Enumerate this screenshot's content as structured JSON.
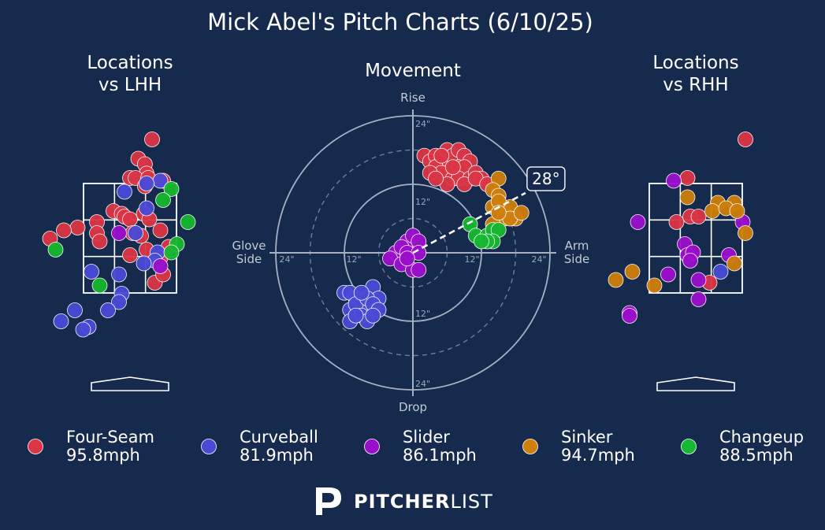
{
  "title": "Mick Abel's Pitch Charts (6/10/25)",
  "brand": {
    "bold": "PITCHER",
    "light": "LIST"
  },
  "colors": {
    "background": "#162a4d",
    "Four-Seam": "#dc3545",
    "Curveball": "#4a4ad8",
    "Slider": "#9b0ecc",
    "Sinker": "#cf7f0a",
    "Changeup": "#16b830"
  },
  "chart_data": [
    {
      "type": "scatter",
      "title": "Locations\nvs LHH",
      "series": [
        {
          "name": "Four-Seam",
          "points": [
            [
              0.4,
              4.3
            ],
            [
              0.15,
              3.95
            ],
            [
              0.27,
              3.85
            ],
            [
              0.0,
              3.6
            ],
            [
              0.3,
              3.68
            ],
            [
              0.1,
              3.6
            ],
            [
              0.33,
              3.6
            ],
            [
              0.6,
              3.55
            ],
            [
              0.27,
              3.45
            ],
            [
              -0.3,
              3.0
            ],
            [
              -0.15,
              2.95
            ],
            [
              -0.1,
              2.9
            ],
            [
              0.25,
              2.95
            ],
            [
              0.35,
              2.85
            ],
            [
              -0.6,
              2.8
            ],
            [
              -0.95,
              2.7
            ],
            [
              0.0,
              2.85
            ],
            [
              -0.6,
              2.6
            ],
            [
              -0.55,
              2.45
            ],
            [
              0.05,
              2.6
            ],
            [
              0.55,
              2.65
            ],
            [
              -1.45,
              2.5
            ],
            [
              -1.2,
              2.65
            ],
            [
              0.2,
              2.55
            ],
            [
              0.7,
              2.35
            ],
            [
              0.3,
              2.3
            ],
            [
              0.55,
              2.15
            ],
            [
              0.45,
              1.7
            ],
            [
              0.6,
              1.85
            ],
            [
              0.0,
              2.2
            ]
          ]
        },
        {
          "name": "Curveball",
          "points": [
            [
              0.55,
              3.55
            ],
            [
              0.3,
              3.5
            ],
            [
              -0.1,
              3.35
            ],
            [
              0.3,
              3.05
            ],
            [
              0.1,
              2.6
            ],
            [
              0.5,
              2.25
            ],
            [
              0.45,
              2.1
            ],
            [
              0.25,
              2.05
            ],
            [
              -0.7,
              1.9
            ],
            [
              -0.2,
              1.85
            ],
            [
              -0.15,
              1.5
            ],
            [
              -0.2,
              1.35
            ],
            [
              -0.4,
              1.2
            ],
            [
              -1.0,
              1.2
            ],
            [
              -1.25,
              1.0
            ],
            [
              -0.75,
              0.9
            ],
            [
              -0.85,
              0.85
            ]
          ]
        },
        {
          "name": "Slider",
          "points": [
            [
              -0.2,
              2.6
            ],
            [
              0.55,
              2.0
            ]
          ]
        },
        {
          "name": "Changeup",
          "points": [
            [
              0.75,
              3.4
            ],
            [
              0.6,
              3.2
            ],
            [
              1.05,
              2.8
            ],
            [
              0.85,
              2.4
            ],
            [
              0.75,
              2.25
            ],
            [
              -1.35,
              2.3
            ],
            [
              -0.55,
              1.65
            ]
          ]
        }
      ]
    },
    {
      "type": "scatter",
      "title": "Movement",
      "xlabel": "Glove\nSide | Arm\nSide",
      "ylabel": "Rise | Drop",
      "ring_labels": [
        "24\"",
        "12\"",
        "12\"",
        "24\"",
        "24\"",
        "12\"",
        "12\"",
        "24\""
      ],
      "arm_angle": "28°",
      "series": [
        {
          "name": "Four-Seam",
          "points": [
            [
              2,
              17
            ],
            [
              3,
              16
            ],
            [
              4,
              17
            ],
            [
              5,
              16
            ],
            [
              6,
              18
            ],
            [
              7,
              17
            ],
            [
              8,
              18
            ],
            [
              9,
              17
            ],
            [
              10,
              16
            ],
            [
              4,
              15
            ],
            [
              6,
              14
            ],
            [
              8,
              15
            ],
            [
              5,
              14
            ],
            [
              7,
              13
            ],
            [
              9,
              15
            ],
            [
              3,
              14
            ],
            [
              8,
              13
            ],
            [
              10,
              13
            ],
            [
              11,
              14
            ],
            [
              12,
              13
            ],
            [
              9,
              12
            ],
            [
              6,
              12
            ],
            [
              4,
              13
            ],
            [
              5,
              17
            ],
            [
              7,
              15
            ],
            [
              11,
              13
            ],
            [
              13,
              12
            ]
          ]
        },
        {
          "name": "Curveball",
          "points": [
            [
              -12,
              -7
            ],
            [
              -10,
              -8
            ],
            [
              -11,
              -7
            ],
            [
              -7,
              -6
            ],
            [
              -9,
              -9
            ],
            [
              -8,
              -10
            ],
            [
              -11,
              -10
            ],
            [
              -6,
              -8
            ],
            [
              -10,
              -9
            ],
            [
              -8,
              -8
            ],
            [
              -9,
              -11
            ],
            [
              -7,
              -9
            ],
            [
              -11,
              -12
            ],
            [
              -8,
              -12
            ],
            [
              -10,
              -11
            ],
            [
              -9,
              -7
            ],
            [
              -6,
              -10
            ],
            [
              -7,
              -11
            ]
          ]
        },
        {
          "name": "Slider",
          "points": [
            [
              -1,
              2
            ],
            [
              0,
              3
            ],
            [
              1,
              2
            ],
            [
              -3,
              0
            ],
            [
              -2,
              1
            ],
            [
              -1,
              0
            ],
            [
              1,
              0
            ],
            [
              -4,
              -1
            ],
            [
              -2,
              -2
            ],
            [
              0,
              -3
            ],
            [
              -1,
              -1
            ],
            [
              1,
              -3
            ]
          ]
        },
        {
          "name": "Sinker",
          "points": [
            [
              15,
              13
            ],
            [
              14,
              11
            ],
            [
              15,
              10
            ],
            [
              14,
              8
            ],
            [
              16,
              7
            ],
            [
              17,
              8
            ],
            [
              18,
              6
            ],
            [
              16,
              6
            ],
            [
              14,
              5
            ],
            [
              15,
              9
            ],
            [
              17,
              6
            ],
            [
              19,
              7
            ],
            [
              15,
              7
            ]
          ]
        },
        {
          "name": "Changeup",
          "points": [
            [
              10,
              5
            ],
            [
              11,
              3
            ],
            [
              13,
              3
            ],
            [
              14,
              4
            ],
            [
              15,
              4
            ],
            [
              14,
              2
            ],
            [
              13,
              2
            ],
            [
              12,
              2
            ]
          ]
        }
      ]
    },
    {
      "type": "scatter",
      "title": "Locations\nvs RHH",
      "series": [
        {
          "name": "Four-Seam",
          "points": [
            [
              0.9,
              4.3
            ],
            [
              -0.15,
              3.6
            ],
            [
              -0.35,
              2.8
            ],
            [
              -0.1,
              2.9
            ],
            [
              0.05,
              2.9
            ],
            [
              0.25,
              1.7
            ]
          ]
        },
        {
          "name": "Curveball",
          "points": [
            [
              0.45,
              1.9
            ]
          ]
        },
        {
          "name": "Slider",
          "points": [
            [
              -0.4,
              3.55
            ],
            [
              -1.05,
              2.8
            ],
            [
              -0.2,
              2.4
            ],
            [
              -0.15,
              2.2
            ],
            [
              -0.05,
              2.25
            ],
            [
              -0.1,
              2.1
            ],
            [
              0.6,
              2.2
            ],
            [
              0.85,
              2.8
            ],
            [
              -0.5,
              1.85
            ],
            [
              0.05,
              1.75
            ],
            [
              0.05,
              1.4
            ],
            [
              -1.2,
              1.15
            ],
            [
              -1.2,
              1.1
            ]
          ]
        },
        {
          "name": "Sinker",
          "points": [
            [
              -0.15,
              3.25
            ],
            [
              0.4,
              3.15
            ],
            [
              0.7,
              3.15
            ],
            [
              0.3,
              3.0
            ],
            [
              0.55,
              3.05
            ],
            [
              0.75,
              3.0
            ],
            [
              0.9,
              2.6
            ],
            [
              0.7,
              2.05
            ],
            [
              -1.15,
              1.9
            ],
            [
              -1.45,
              1.75
            ],
            [
              -0.75,
              1.65
            ]
          ]
        }
      ]
    }
  ],
  "legend": [
    {
      "name": "Four-Seam",
      "velo": "95.8mph"
    },
    {
      "name": "Curveball",
      "velo": "81.9mph"
    },
    {
      "name": "Slider",
      "velo": "86.1mph"
    },
    {
      "name": "Sinker",
      "velo": "94.7mph"
    },
    {
      "name": "Changeup",
      "velo": "88.5mph"
    }
  ]
}
